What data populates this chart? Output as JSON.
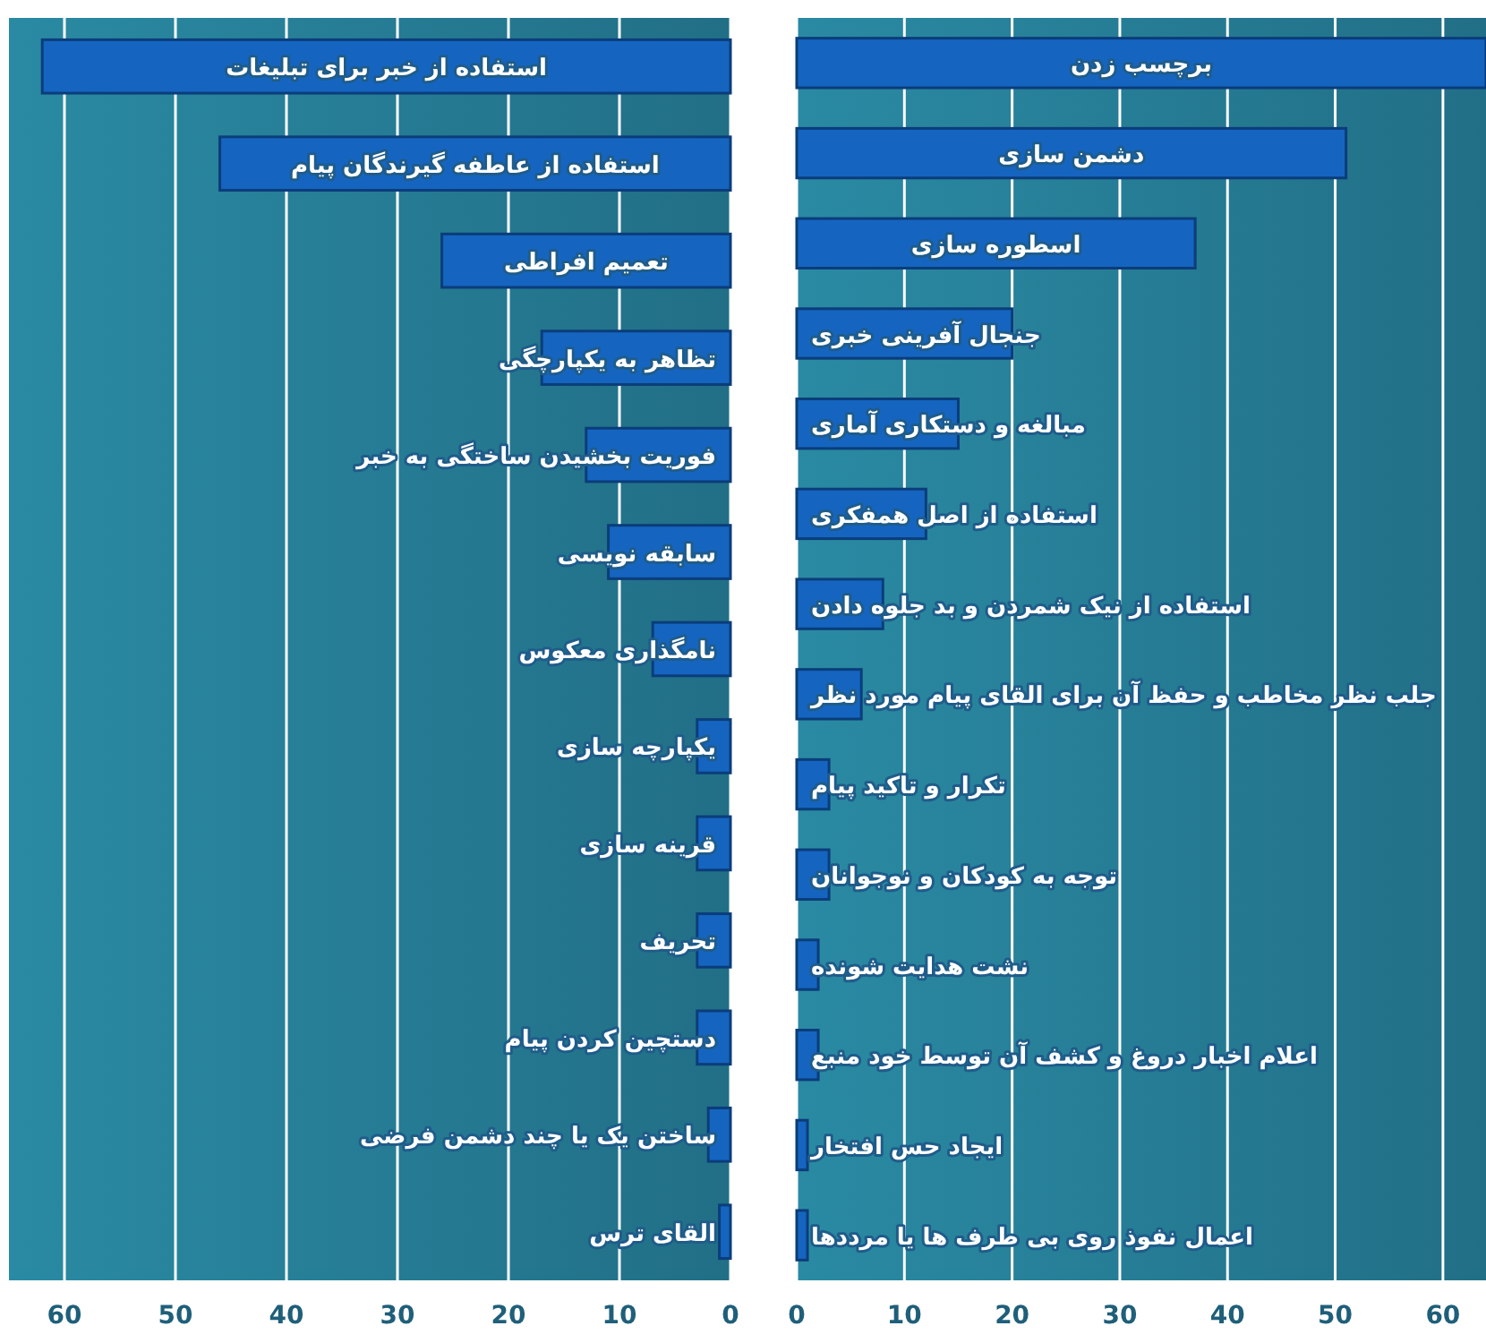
{
  "chart_data": [
    {
      "type": "bar",
      "orientation": "horizontal",
      "categories": [
        "استفاده از خبر برای تبلیغات",
        "استفاده از عاطفه گیرندگان پیام",
        "تعمیم افراطی",
        "تظاهر به یکپارچگی",
        "فوریت بخشیدن ساختگی به خبر",
        "سابقه نویسی",
        "نامگذاری معکوس",
        "یکپارچه سازی",
        "قرینه سازی",
        "تحریف",
        "دستچین کردن پیام",
        "ساختن یک یا چند دشمن فرضی",
        "القای ترس"
      ],
      "values": [
        62,
        46,
        26,
        17,
        13,
        11,
        7,
        3,
        3,
        3,
        3,
        2,
        1
      ],
      "color": "#1565c0",
      "xlim": [
        65,
        0
      ],
      "xticks": [
        0,
        10,
        20,
        30,
        40,
        50,
        60
      ],
      "grid": "x"
    },
    {
      "type": "bar",
      "orientation": "horizontal",
      "categories": [
        "برچسب زدن",
        "دشمن سازی",
        "اسطوره سازی",
        "جنجال آفرینی خبری",
        "مبالغه و دستکاری آماری",
        "استفاده از اصل همفکری",
        "استفاده از نیک شمردن و بد جلوه دادن",
        "جلب نظر مخاطب و حفظ آن برای القای پیام مورد نظر",
        "تکرار و تاکید پیام",
        "توجه به کودکان و نوجوانان",
        "نشت هدایت شونده",
        "اعلام اخبار دروغ و کشف آن توسط خود منبع",
        "ایجاد حس افتخار",
        "اعمال نفوذ روی بی طرف ها یا مرددها"
      ],
      "values": [
        64,
        51,
        37,
        20,
        15,
        12,
        8,
        6,
        3,
        3,
        2,
        2,
        1,
        1
      ],
      "color": "#1565c0",
      "xlim": [
        0,
        64
      ],
      "xticks": [
        0,
        10,
        20,
        30,
        40,
        50,
        60
      ],
      "grid": "x"
    }
  ]
}
